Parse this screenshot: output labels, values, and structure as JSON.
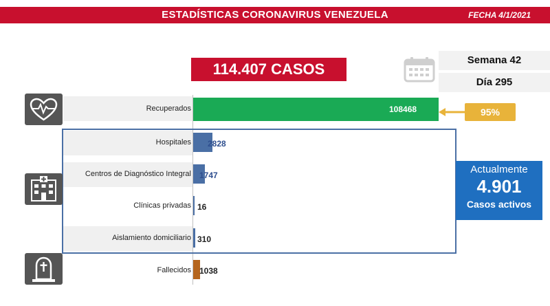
{
  "header": {
    "title": "ESTADÍSTICAS CORONAVIRUS VENEZUELA",
    "date": "FECHA 4/1/2021"
  },
  "total_cases": "114.407 CASOS",
  "week": "Semana 42",
  "day": "Día 295",
  "recovered_pct": "95%",
  "active": {
    "line1": "Actualmente",
    "value": "4.901",
    "line2": "Casos activos"
  },
  "colors": {
    "header": "#c8102e",
    "recovered": "#1aaa55",
    "hospital": "#4a6fa5",
    "deceased": "#b5651d",
    "pct": "#e8b33a",
    "active": "#1f6fc0"
  },
  "icons": [
    "heart-pulse-icon",
    "hospital-icon",
    "tombstone-icon",
    "calendar-icon"
  ],
  "chart_data": {
    "type": "bar",
    "orientation": "horizontal",
    "categories": [
      "Recuperados",
      "Hospitales",
      "Centros de Diagnóstico Integral",
      "Clínicas privadas",
      "Aislamiento domiciliario",
      "Fallecidos"
    ],
    "values": [
      108468,
      2828,
      1747,
      16,
      310,
      1038
    ],
    "value_labels": [
      "108468",
      "2828",
      "1747",
      "16",
      "310",
      "1038"
    ],
    "title": "",
    "xlabel": "",
    "ylabel": ""
  }
}
